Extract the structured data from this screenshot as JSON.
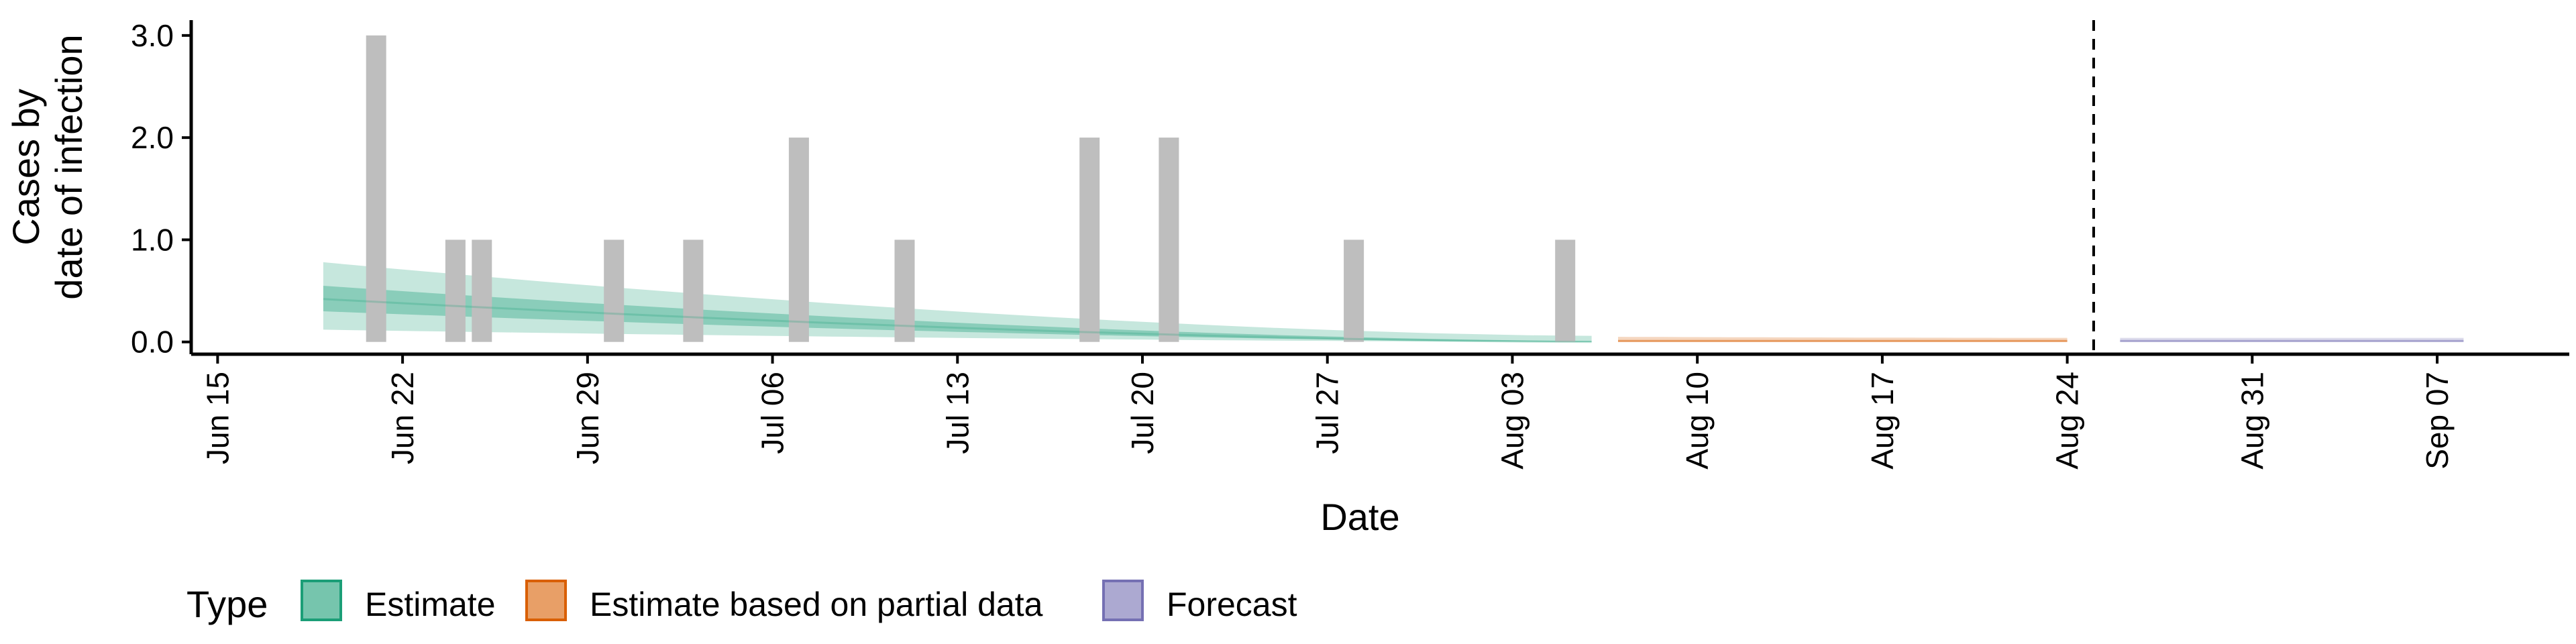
{
  "chart_data": {
    "type": "bar",
    "xlabel": "Date",
    "ylabel": [
      "Cases by",
      "date of infection"
    ],
    "x_ticks": [
      "Jun 15",
      "Jun 22",
      "Jun 29",
      "Jul 06",
      "Jul 13",
      "Jul 20",
      "Jul 27",
      "Aug 03",
      "Aug 10",
      "Aug 17",
      "Aug 24",
      "Aug 31",
      "Sep 07"
    ],
    "y_ticks": [
      "0.0",
      "1.0",
      "2.0",
      "3.0"
    ],
    "xlim": [
      "2020-06-14",
      "2020-09-12"
    ],
    "ylim": [
      -0.12,
      3.15
    ],
    "grid": false,
    "reported_cases": [
      {
        "date": "2020-06-21",
        "value": 3
      },
      {
        "date": "2020-06-24",
        "value": 1
      },
      {
        "date": "2020-06-25",
        "value": 1
      },
      {
        "date": "2020-06-30",
        "value": 1
      },
      {
        "date": "2020-07-03",
        "value": 1
      },
      {
        "date": "2020-07-07",
        "value": 2
      },
      {
        "date": "2020-07-11",
        "value": 1
      },
      {
        "date": "2020-07-18",
        "value": 2
      },
      {
        "date": "2020-07-21",
        "value": 2
      },
      {
        "date": "2020-07-28",
        "value": 1
      },
      {
        "date": "2020-08-05",
        "value": 1
      }
    ],
    "bar_color": "#bebebe",
    "vline_date": "2020-08-25",
    "series": [
      {
        "name": "Estimate",
        "color": "#1b9e77",
        "date_range": [
          "2020-06-19",
          "2020-08-06"
        ],
        "median": [
          0.42,
          0.0
        ],
        "inner_band": [
          [
            0.3,
            0.55
          ],
          [
            0.0,
            0.01
          ]
        ],
        "outer_band": [
          [
            0.12,
            0.78
          ],
          [
            0.0,
            0.06
          ]
        ]
      },
      {
        "name": "Estimate based on partial data",
        "color": "#d95f02",
        "date_range": [
          "2020-08-07",
          "2020-08-24"
        ],
        "median": [
          0.01,
          0.01
        ],
        "inner_band": [
          [
            0.0,
            0.02
          ],
          [
            0.0,
            0.02
          ]
        ],
        "outer_band": [
          [
            0.0,
            0.05
          ],
          [
            0.0,
            0.04
          ]
        ]
      },
      {
        "name": "Forecast",
        "color": "#7570b3",
        "date_range": [
          "2020-08-26",
          "2020-09-08"
        ],
        "median": [
          0.01,
          0.01
        ],
        "inner_band": [
          [
            0.0,
            0.02
          ],
          [
            0.0,
            0.02
          ]
        ],
        "outer_band": [
          [
            0.0,
            0.04
          ],
          [
            0.0,
            0.04
          ]
        ]
      }
    ],
    "legend": {
      "title": "Type",
      "position": "bottom-left",
      "entries": [
        {
          "label": "Estimate",
          "color": "#1b9e77"
        },
        {
          "label": "Estimate based on partial data",
          "color": "#d95f02"
        },
        {
          "label": "Forecast",
          "color": "#7570b3"
        }
      ]
    }
  }
}
